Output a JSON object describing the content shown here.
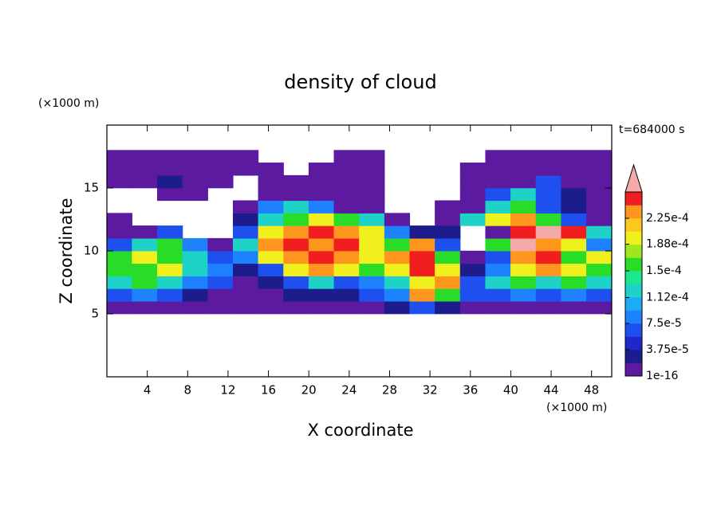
{
  "chart_data": {
    "type": "contour",
    "title": "density of cloud",
    "x_label": "X coordinate",
    "y_label": "Z coordinate",
    "x_unit_label": "(×1000 m)",
    "y_unit_label": "(×1000 m)",
    "time_label": "t=684000 s",
    "xlim": [
      0,
      50
    ],
    "ylim": [
      0,
      20
    ],
    "xticks": [
      4,
      8,
      12,
      16,
      20,
      24,
      28,
      32,
      36,
      40,
      44,
      48
    ],
    "yticks": [
      5,
      10,
      15
    ],
    "x": [
      1.25,
      3.75,
      6.25,
      8.75,
      11.25,
      13.75,
      16.25,
      18.75,
      21.25,
      23.75,
      26.25,
      28.75,
      31.25,
      33.75,
      36.25,
      38.75,
      41.25,
      43.75,
      46.25,
      48.75
    ],
    "y": [
      5.5,
      6.5,
      7.5,
      8.5,
      9.5,
      10.5,
      11.5,
      12.5,
      13.5,
      14.5,
      15.5,
      16.5,
      17.5
    ],
    "z": [
      [
        1e-05,
        1e-05,
        1e-05,
        1e-05,
        1e-05,
        1e-05,
        1e-05,
        1e-05,
        1e-05,
        1e-05,
        1e-05,
        3e-05,
        6e-05,
        3e-05,
        1e-05,
        1e-05,
        1e-05,
        1e-05,
        1e-05,
        1e-05
      ],
      [
        6e-05,
        9e-05,
        6e-05,
        3e-05,
        1e-05,
        1e-05,
        1e-05,
        3e-05,
        3e-05,
        3e-05,
        6e-05,
        9e-05,
        0.00023,
        0.00016,
        6e-05,
        6e-05,
        9e-05,
        6e-05,
        9e-05,
        6e-05
      ],
      [
        0.00012,
        0.00016,
        0.00012,
        9e-05,
        6e-05,
        1e-05,
        3e-05,
        6e-05,
        0.00012,
        6e-05,
        9e-05,
        0.00012,
        0.00019,
        0.00023,
        6e-05,
        0.00012,
        0.00016,
        0.00012,
        0.00016,
        0.00012
      ],
      [
        0.00016,
        0.00016,
        0.00019,
        0.00012,
        9e-05,
        3e-05,
        6e-05,
        0.00019,
        0.00023,
        0.00019,
        0.00016,
        0.00019,
        0.00025,
        0.00019,
        3e-05,
        9e-05,
        0.00019,
        0.00023,
        0.00019,
        0.00016
      ],
      [
        0.00016,
        0.00019,
        0.00016,
        0.00012,
        6e-05,
        9e-05,
        0.00019,
        0.00023,
        0.00025,
        0.00023,
        0.00019,
        0.00023,
        0.00025,
        0.00016,
        1e-05,
        6e-05,
        0.00023,
        0.00025,
        0.00016,
        0.00019
      ],
      [
        6e-05,
        0.00012,
        0.00016,
        9e-05,
        1e-05,
        0.00012,
        0.00023,
        0.00025,
        0.00023,
        0.00025,
        0.00019,
        0.00016,
        0.00023,
        6e-05,
        null,
        0.00016,
        0.00027,
        0.00023,
        0.00019,
        9e-05
      ],
      [
        1e-05,
        1e-05,
        6e-05,
        null,
        null,
        6e-05,
        0.00019,
        0.00023,
        0.00025,
        0.00023,
        0.00019,
        9e-05,
        3e-05,
        3e-05,
        null,
        1e-05,
        0.00025,
        0.00027,
        0.00025,
        0.00012
      ],
      [
        1e-05,
        null,
        null,
        null,
        null,
        3e-05,
        0.00012,
        0.00016,
        0.00019,
        0.00016,
        0.00012,
        1e-05,
        null,
        1e-05,
        0.00012,
        0.00019,
        0.00023,
        0.00016,
        6e-05,
        1e-05
      ],
      [
        null,
        null,
        null,
        null,
        null,
        1e-05,
        9e-05,
        0.00012,
        9e-05,
        1e-05,
        1e-05,
        null,
        null,
        1e-05,
        1e-05,
        0.00012,
        0.00016,
        6e-05,
        3e-05,
        1e-05
      ],
      [
        null,
        null,
        1e-05,
        1e-05,
        null,
        null,
        1e-05,
        1e-05,
        1e-05,
        1e-05,
        1e-05,
        null,
        null,
        null,
        1e-05,
        6e-05,
        0.00012,
        6e-05,
        3e-05,
        1e-05
      ],
      [
        1e-05,
        1e-05,
        3e-05,
        1e-05,
        1e-05,
        null,
        1e-05,
        1e-05,
        1e-05,
        1e-05,
        1e-05,
        null,
        null,
        null,
        1e-05,
        1e-05,
        1e-05,
        6e-05,
        1e-05,
        1e-05
      ],
      [
        1e-05,
        1e-05,
        1e-05,
        1e-05,
        1e-05,
        1e-05,
        1e-05,
        null,
        1e-05,
        1e-05,
        1e-05,
        null,
        null,
        null,
        1e-05,
        1e-05,
        1e-05,
        1e-05,
        1e-05,
        1e-05
      ],
      [
        1e-05,
        1e-05,
        1e-05,
        1e-05,
        1e-05,
        1e-05,
        null,
        null,
        null,
        1e-05,
        1e-05,
        null,
        null,
        null,
        null,
        1e-05,
        1e-05,
        1e-05,
        1e-05,
        1e-05
      ]
    ],
    "colorbar": {
      "levels": [
        1e-16,
        1.875e-05,
        3.75e-05,
        5.625e-05,
        7.5e-05,
        9.375e-05,
        0.0001125,
        0.00013125,
        0.00015,
        0.00016875,
        0.0001875,
        0.00020625,
        0.000225,
        0.00024375,
        0.0002625
      ],
      "colors": [
        "#5b1aa0",
        "#1c1c8c",
        "#1e28c8",
        "#1e50f0",
        "#1e82ff",
        "#1eaaf5",
        "#1ed2c8",
        "#1ee68c",
        "#28dc28",
        "#a0e61e",
        "#f0f01e",
        "#fac81e",
        "#ff961e",
        "#f01e1e",
        "#f5aaaa"
      ],
      "ticks": [
        1e-16,
        {
          "value": 3.75e-05,
          "label": "3.75e-5"
        },
        {
          "value": 7.5e-05,
          "label": "7.5e-5"
        },
        {
          "value": 0.000112,
          "label": "1.12e-4"
        },
        {
          "value": 0.00015,
          "label": "1.5e-4"
        },
        {
          "value": 0.000188,
          "label": "1.88e-4"
        },
        {
          "value": 0.000225,
          "label": "2.25e-4"
        }
      ]
    }
  }
}
